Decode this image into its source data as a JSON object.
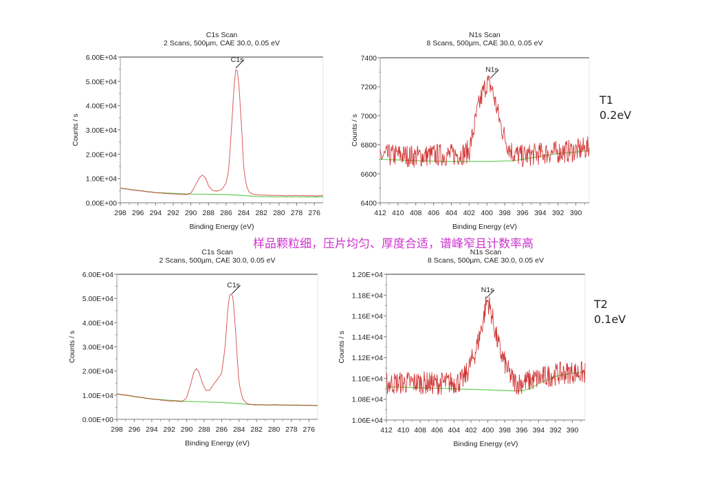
{
  "caption": "样品颗粒细，压片均匀、厚度合适，谱峰窄且计数率高",
  "samples": [
    {
      "id": "T1",
      "step": "0.2eV"
    },
    {
      "id": "T2",
      "step": "0.1eV"
    }
  ],
  "colors": {
    "spectrum": "#cc2222",
    "background": "#66cc55",
    "axis": "#888888",
    "caption": "#cc33cc"
  },
  "chart_data": [
    {
      "type": "line",
      "panel": "T1-C1s",
      "title": "C1s Scan",
      "subtitle": "2 Scans,  500µm,  CAE 30.0,  0.05 eV",
      "xlabel": "Binding Energy (eV)",
      "ylabel": "Counts / s",
      "xlim": [
        298,
        275
      ],
      "ylim": [
        0,
        60000
      ],
      "xticks": [
        "298",
        "296",
        "294",
        "292",
        "290",
        "288",
        "286",
        "284",
        "282",
        "280",
        "278",
        "276"
      ],
      "yticks": [
        "0.00E+00",
        "1.00E+04",
        "2.00E+04",
        "3.00E+04",
        "4.00E+04",
        "5.00E+04",
        "6.00E+04"
      ],
      "peak_label": "C1s",
      "peak_label_pos": [
        284.9,
        55500
      ],
      "series": [
        {
          "name": "spectrum",
          "x": [
            298,
            296,
            294,
            292,
            290.5,
            290,
            289.5,
            289,
            288.7,
            288.3,
            288,
            287.5,
            287,
            286.5,
            286,
            285.7,
            285.4,
            285.1,
            284.9,
            284.7,
            284.5,
            284.2,
            284,
            283.7,
            283.4,
            283,
            282.5,
            282,
            280,
            278,
            276,
            275
          ],
          "y": [
            6000,
            5000,
            4200,
            3600,
            3400,
            4000,
            7000,
            10500,
            11500,
            10000,
            7000,
            5000,
            4800,
            5500,
            8000,
            14000,
            30000,
            48000,
            55000,
            54000,
            46000,
            28000,
            14000,
            7000,
            4500,
            3500,
            3300,
            3200,
            3000,
            3000,
            2900,
            2900
          ]
        },
        {
          "name": "background",
          "x": [
            298,
            294,
            290,
            288,
            286,
            284,
            283,
            282,
            276,
            275
          ],
          "y": [
            6000,
            4200,
            3600,
            3500,
            3400,
            3000,
            2700,
            2500,
            2400,
            2400
          ]
        }
      ]
    },
    {
      "type": "line",
      "panel": "T1-N1s",
      "title": "N1s Scan",
      "subtitle": "8 Scans,  500µm,  CAE 30.0,  0.05 eV",
      "xlabel": "Binding Energy (eV)",
      "ylabel": "Counts / s",
      "xlim": [
        412,
        388.5
      ],
      "ylim": [
        6400,
        7400
      ],
      "xticks": [
        "412",
        "410",
        "408",
        "406",
        "404",
        "402",
        "400",
        "398",
        "396",
        "394",
        "392",
        "390"
      ],
      "yticks": [
        "6400",
        "6600",
        "6800",
        "7000",
        "7200",
        "7400"
      ],
      "peak_label": "N1s",
      "peak_label_pos": [
        399.6,
        7260
      ],
      "series": [
        {
          "name": "spectrum",
          "x": [
            412,
            410,
            408,
            406,
            404,
            402.5,
            402,
            401.5,
            401,
            400.5,
            400,
            399.5,
            399,
            398.5,
            398,
            397.5,
            397,
            396,
            394,
            392,
            390,
            388.5
          ],
          "y": [
            6720,
            6730,
            6720,
            6730,
            6730,
            6740,
            6760,
            6900,
            7050,
            7150,
            7230,
            7200,
            7080,
            6950,
            6850,
            6780,
            6740,
            6720,
            6740,
            6750,
            6760,
            6780
          ]
        },
        {
          "name": "background",
          "x": [
            412,
            408,
            404,
            400,
            397,
            396,
            394,
            392,
            390,
            388.5
          ],
          "y": [
            6700,
            6690,
            6685,
            6685,
            6690,
            6700,
            6720,
            6740,
            6750,
            6760
          ]
        }
      ]
    },
    {
      "type": "line",
      "panel": "T2-C1s",
      "title": "C1s Scan",
      "subtitle": "2 Scans,  500µm,  CAE 30.0,  0.05 eV",
      "xlabel": "Binding Energy (eV)",
      "ylabel": "Counts / s",
      "xlim": [
        298,
        275
      ],
      "ylim": [
        0,
        60000
      ],
      "xticks": [
        "298",
        "296",
        "294",
        "292",
        "290",
        "288",
        "286",
        "284",
        "282",
        "280",
        "278",
        "276"
      ],
      "yticks": [
        "0.00E+00",
        "1.00E+04",
        "2.00E+04",
        "3.00E+04",
        "4.00E+04",
        "5.00E+04",
        "6.00E+04"
      ],
      "peak_label": "C1s",
      "peak_label_pos": [
        284.8,
        52000
      ],
      "series": [
        {
          "name": "spectrum",
          "x": [
            298,
            296,
            294,
            292,
            290.5,
            290,
            289.5,
            289.2,
            288.9,
            288.6,
            288.2,
            287.8,
            287.4,
            287,
            286.5,
            286,
            285.6,
            285.3,
            285.1,
            284.9,
            284.7,
            284.5,
            284.2,
            284,
            283.6,
            283.2,
            282.8,
            282,
            280,
            278,
            276,
            275
          ],
          "y": [
            10500,
            9500,
            8400,
            7600,
            7400,
            9000,
            15000,
            19500,
            21000,
            19500,
            15000,
            12000,
            12000,
            14000,
            16500,
            19000,
            30000,
            45000,
            51000,
            52000,
            50500,
            42000,
            25000,
            15000,
            8500,
            6800,
            6200,
            6000,
            6000,
            5900,
            5800,
            5700
          ]
        },
        {
          "name": "background",
          "x": [
            298,
            294,
            290,
            288,
            286,
            284,
            283,
            282,
            276,
            275
          ],
          "y": [
            10500,
            8400,
            7400,
            7200,
            7000,
            6500,
            6200,
            6000,
            5800,
            5700
          ]
        }
      ]
    },
    {
      "type": "line",
      "panel": "T2-N1s",
      "title": "N1s Scan",
      "subtitle": "8 Scans,  500µm,  CAE 30.0,  0.05 eV",
      "xlabel": "Binding Energy (eV)",
      "ylabel": "Counts / s",
      "xlim": [
        412,
        388.5
      ],
      "ylim": [
        10600,
        12000
      ],
      "xticks": [
        "412",
        "410",
        "408",
        "406",
        "404",
        "402",
        "400",
        "398",
        "396",
        "394",
        "392",
        "390"
      ],
      "yticks": [
        "1.06E+04",
        "1.08E+04",
        "1.10E+04",
        "1.12E+04",
        "1.14E+04",
        "1.16E+04",
        "1.18E+04",
        "1.20E+04"
      ],
      "peak_label": "N1s",
      "peak_label_pos": [
        400.2,
        11770
      ],
      "series": [
        {
          "name": "spectrum",
          "x": [
            412,
            410,
            408,
            406,
            404,
            403,
            402.5,
            402,
            401.5,
            401,
            400.5,
            400.2,
            400,
            399.5,
            399,
            398.5,
            398,
            397.5,
            397,
            396.5,
            396,
            394,
            392,
            390,
            388.5
          ],
          "y": [
            10950,
            10960,
            10960,
            10950,
            10960,
            10980,
            11050,
            11150,
            11250,
            11400,
            11580,
            11720,
            11750,
            11600,
            11400,
            11250,
            11150,
            11050,
            10980,
            10950,
            10960,
            11000,
            11040,
            11060,
            11050
          ]
        },
        {
          "name": "background",
          "x": [
            412,
            408,
            404,
            400,
            397,
            396,
            395,
            394,
            392,
            390,
            388.5
          ],
          "y": [
            10920,
            10910,
            10900,
            10890,
            10880,
            10880,
            10900,
            10950,
            11020,
            11050,
            11060
          ]
        }
      ]
    }
  ]
}
